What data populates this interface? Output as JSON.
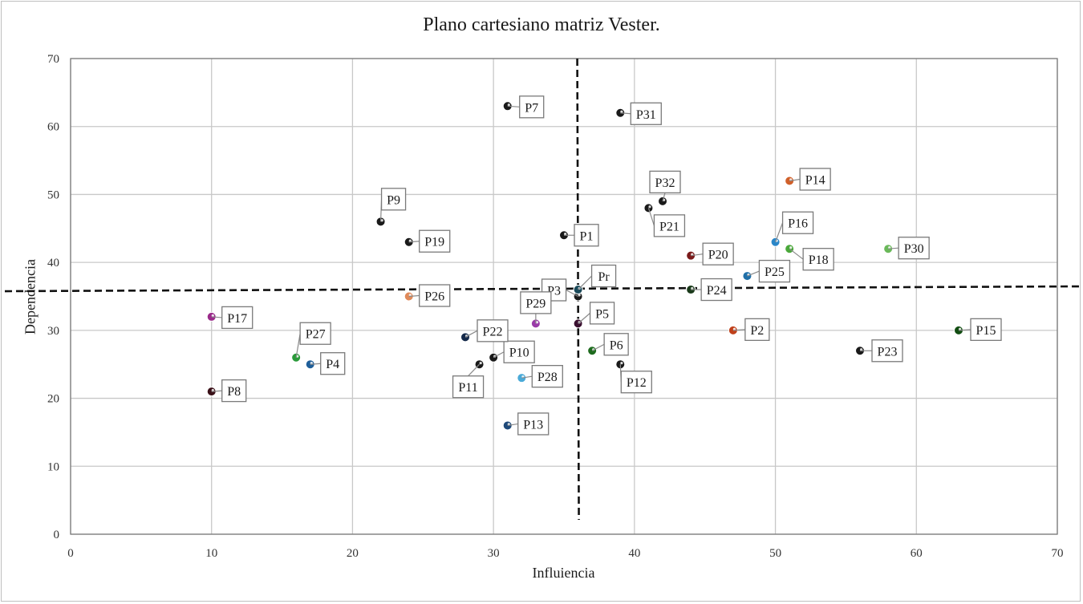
{
  "chart_data": {
    "type": "scatter",
    "title": "Plano cartesiano matriz Vester.",
    "xlabel": "Influiencia",
    "ylabel": "Dependencia",
    "xlim": [
      0,
      70
    ],
    "ylim": [
      0,
      70
    ],
    "xticks": [
      0,
      10,
      20,
      30,
      40,
      50,
      60,
      70
    ],
    "yticks": [
      0,
      10,
      20,
      30,
      40,
      50,
      60,
      70
    ],
    "grid": true,
    "legend": "none",
    "reference_lines": {
      "vertical_x": 36,
      "horizontal_y": 36
    },
    "points": [
      {
        "label": "P1",
        "x": 35,
        "y": 44,
        "color": "#1a1a1a"
      },
      {
        "label": "P2",
        "x": 47,
        "y": 30,
        "color": "#c0401a"
      },
      {
        "label": "P3",
        "x": 36,
        "y": 35,
        "color": "#1a1a1a"
      },
      {
        "label": "P4",
        "x": 17,
        "y": 25,
        "color": "#1f5f9a"
      },
      {
        "label": "P5",
        "x": 36,
        "y": 31,
        "color": "#3a1030"
      },
      {
        "label": "P6",
        "x": 37,
        "y": 27,
        "color": "#1e6b1e"
      },
      {
        "label": "P7",
        "x": 31,
        "y": 63,
        "color": "#1a1a1a"
      },
      {
        "label": "P8",
        "x": 10,
        "y": 21,
        "color": "#3a1018"
      },
      {
        "label": "P9",
        "x": 22,
        "y": 46,
        "color": "#1a1a1a"
      },
      {
        "label": "P10",
        "x": 30,
        "y": 26,
        "color": "#1a1a1a"
      },
      {
        "label": "P11",
        "x": 29,
        "y": 25,
        "color": "#1a1a1a"
      },
      {
        "label": "P12",
        "x": 39,
        "y": 25,
        "color": "#1a1a1a"
      },
      {
        "label": "P13",
        "x": 31,
        "y": 16,
        "color": "#1f4a7a"
      },
      {
        "label": "P14",
        "x": 51,
        "y": 52,
        "color": "#d0602a"
      },
      {
        "label": "P15",
        "x": 63,
        "y": 30,
        "color": "#124d12"
      },
      {
        "label": "P16",
        "x": 50,
        "y": 43,
        "color": "#2a86c8"
      },
      {
        "label": "P17",
        "x": 10,
        "y": 32,
        "color": "#9a2a8a"
      },
      {
        "label": "P18",
        "x": 51,
        "y": 42,
        "color": "#4aa83a"
      },
      {
        "label": "P19",
        "x": 24,
        "y": 43,
        "color": "#1a1a1a"
      },
      {
        "label": "P20",
        "x": 44,
        "y": 41,
        "color": "#7a1a1a"
      },
      {
        "label": "P21",
        "x": 41,
        "y": 48,
        "color": "#1a1a1a"
      },
      {
        "label": "P22",
        "x": 28,
        "y": 29,
        "color": "#152a4a"
      },
      {
        "label": "P23",
        "x": 56,
        "y": 27,
        "color": "#1a1a1a"
      },
      {
        "label": "P24",
        "x": 44,
        "y": 36,
        "color": "#1a3a1a"
      },
      {
        "label": "P25",
        "x": 48,
        "y": 38,
        "color": "#1f6fa8"
      },
      {
        "label": "P26",
        "x": 24,
        "y": 35,
        "color": "#e08a5a"
      },
      {
        "label": "P27",
        "x": 16,
        "y": 26,
        "color": "#2a9a3a"
      },
      {
        "label": "P28",
        "x": 32,
        "y": 23,
        "color": "#4aaad8"
      },
      {
        "label": "P29",
        "x": 33,
        "y": 31,
        "color": "#9a3aa8"
      },
      {
        "label": "P30",
        "x": 58,
        "y": 42,
        "color": "#6ab85a"
      },
      {
        "label": "P31",
        "x": 39,
        "y": 62,
        "color": "#1a1a1a"
      },
      {
        "label": "P32",
        "x": 42,
        "y": 49,
        "color": "#1a1a1a"
      },
      {
        "label": "Pr",
        "x": 36,
        "y": 36,
        "color": "#1a4a5a"
      }
    ]
  }
}
